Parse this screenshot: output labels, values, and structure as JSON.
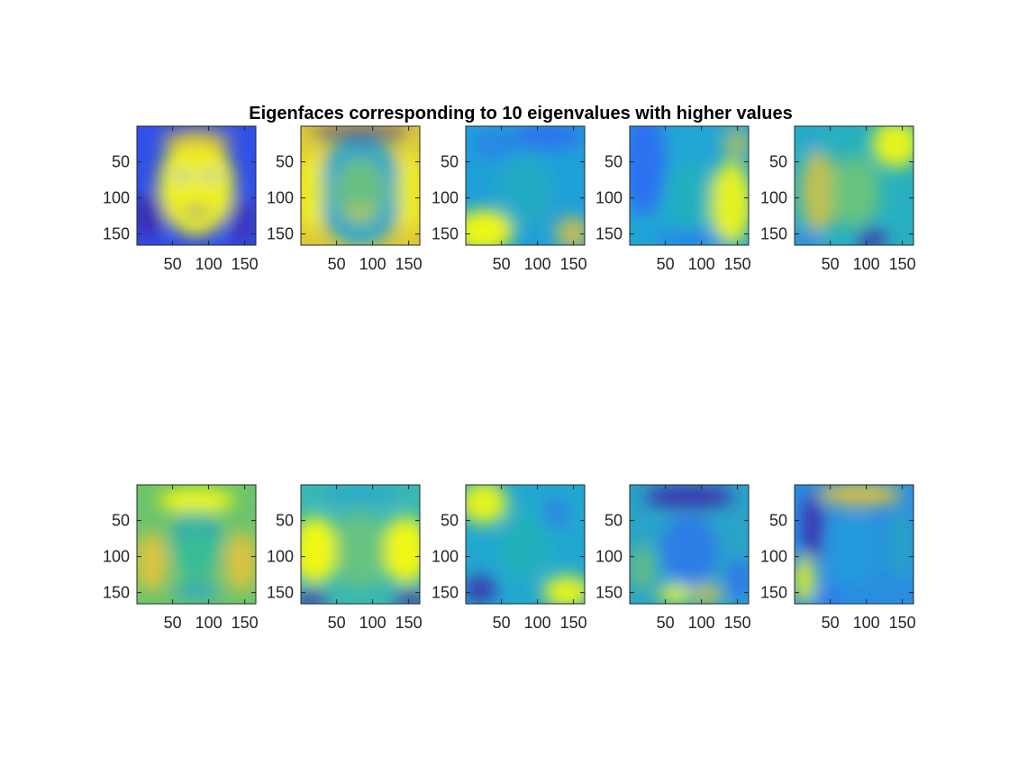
{
  "chart_data": {
    "type": "heatmap",
    "title": "Eigenfaces corresponding to 10 eigenvalues with higher values",
    "xlabel": "",
    "ylabel": "",
    "colormap": "parula",
    "colors": {
      "low": "#3e26a8",
      "mid": "#24b9a7",
      "high": "#f9fb0e"
    },
    "image_size": [
      165,
      165
    ],
    "xlim": [
      0.5,
      165.5
    ],
    "ylim": [
      0.5,
      165.5
    ],
    "y_reversed": true,
    "xticks": [
      50,
      100,
      150
    ],
    "yticks": [
      50,
      100,
      150
    ],
    "xtick_labels": [
      "50",
      "100",
      "150"
    ],
    "ytick_labels": [
      "50",
      "100",
      "150"
    ],
    "grid": false,
    "rows": 2,
    "cols": 5,
    "panels": [
      {
        "index": 1,
        "description": "mean-like face: bright face, dark background"
      },
      {
        "index": 2,
        "description": "bright hair outline around greenish face"
      },
      {
        "index": 3,
        "description": "bright lower-left corner, dark top"
      },
      {
        "index": 4,
        "description": "dark left, bright right side"
      },
      {
        "index": 5,
        "description": "bright top-right, long-hair pattern"
      },
      {
        "index": 6,
        "description": "bright forehead band and cheeks"
      },
      {
        "index": 7,
        "description": "bright side lobes, dark bottom corners"
      },
      {
        "index": 8,
        "description": "bright top-left and bottom-right"
      },
      {
        "index": 9,
        "description": "dark hair band, bright lower chin area"
      },
      {
        "index": 10,
        "description": "dark left hair stripe, bright top"
      }
    ]
  }
}
